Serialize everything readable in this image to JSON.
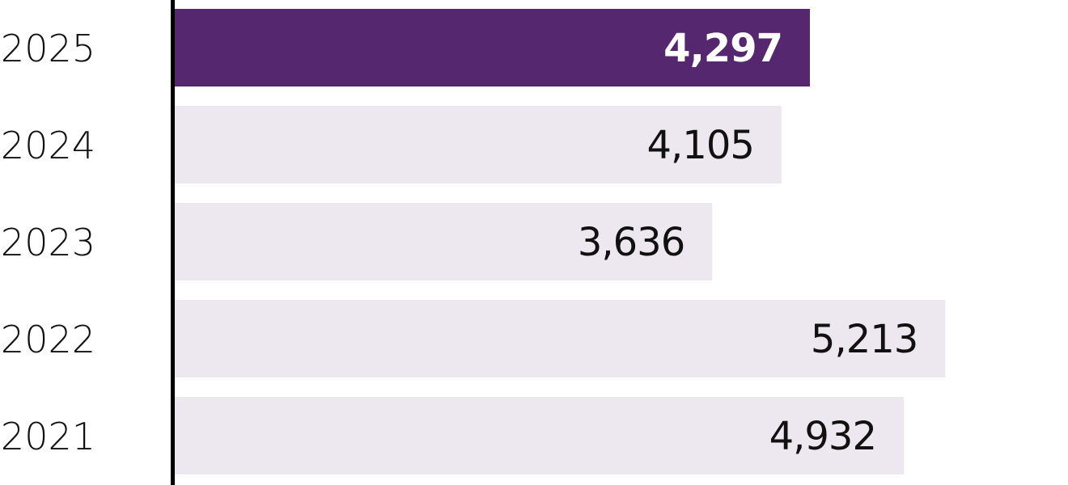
{
  "chart_data": {
    "type": "bar",
    "orientation": "horizontal",
    "title": "",
    "xlabel": "",
    "ylabel": "",
    "categories": [
      "2025",
      "2024",
      "2023",
      "2022",
      "2021"
    ],
    "values": [
      4297,
      4105,
      3636,
      5213,
      4932
    ],
    "labels": [
      "4,297",
      "4,105",
      "3,636",
      "5,213",
      "4,932"
    ],
    "highlight_index": 0,
    "xlim": [
      0,
      6000
    ],
    "grid": false,
    "colors": {
      "highlight": "#55276f",
      "default": "#ede8ef",
      "axis": "#000000",
      "highlight_label": "#ffffff",
      "label": "#111111"
    }
  }
}
